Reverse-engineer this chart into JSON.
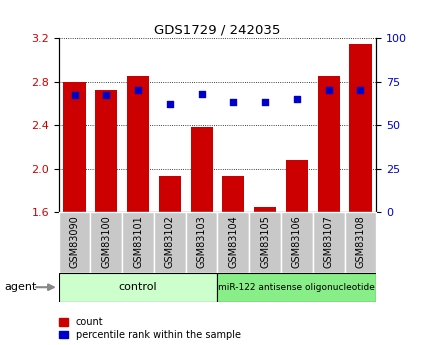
{
  "title": "GDS1729 / 242035",
  "categories": [
    "GSM83090",
    "GSM83100",
    "GSM83101",
    "GSM83102",
    "GSM83103",
    "GSM83104",
    "GSM83105",
    "GSM83106",
    "GSM83107",
    "GSM83108"
  ],
  "red_values": [
    2.8,
    2.72,
    2.85,
    1.93,
    2.38,
    1.93,
    1.65,
    2.08,
    2.85,
    3.14
  ],
  "blue_values": [
    67,
    67,
    70,
    62,
    68,
    63,
    63,
    65,
    70,
    70
  ],
  "ylim_left": [
    1.6,
    3.2
  ],
  "ylim_right": [
    0,
    100
  ],
  "yticks_left": [
    1.6,
    2.0,
    2.4,
    2.8,
    3.2
  ],
  "yticks_right": [
    0,
    25,
    50,
    75,
    100
  ],
  "bar_color": "#cc0000",
  "dot_color": "#0000cc",
  "bg_color": "#ffffff",
  "tick_label_color_left": "#cc0000",
  "tick_label_color_right": "#0000cc",
  "group1_label": "control",
  "group2_label": "miR-122 antisense oligonucleotide",
  "group1_indices": [
    0,
    1,
    2,
    3,
    4
  ],
  "group2_indices": [
    5,
    6,
    7,
    8,
    9
  ],
  "agent_label": "agent",
  "legend_count": "count",
  "legend_percentile": "percentile rank within the sample",
  "group1_bg_color": "#ccffcc",
  "group2_bg_color": "#88ee88",
  "xlabel_area_bg": "#c8c8c8",
  "bar_bottom": 1.6
}
